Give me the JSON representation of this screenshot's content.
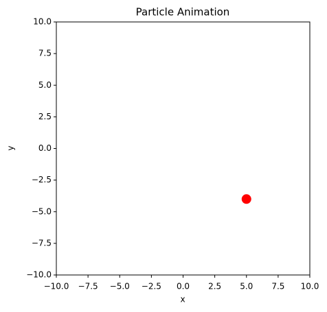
{
  "chart_data": {
    "type": "scatter",
    "title": "Particle Animation",
    "x_label": "x",
    "y_label": "y",
    "x": [
      5
    ],
    "values": [
      -4
    ],
    "color": "#ff0000",
    "xlim": [
      -10,
      10
    ],
    "ylim": [
      -10,
      10
    ],
    "xticks": [
      {
        "value": -10,
        "label": "−10.0"
      },
      {
        "value": -7.5,
        "label": "−7.5"
      },
      {
        "value": -5,
        "label": "−5.0"
      },
      {
        "value": -2.5,
        "label": "−2.5"
      },
      {
        "value": 0,
        "label": "0.0"
      },
      2.5,
      {
        "value": 5,
        "label": "5.0"
      },
      7.5,
      {
        "value": 10,
        "label": "10.0"
      }
    ],
    "yticks": [
      {
        "value": -10,
        "label": "−10.0"
      },
      {
        "value": -7.5,
        "label": "−7.5"
      },
      {
        "value": -5,
        "label": "−5.0"
      },
      {
        "value": -2.5,
        "label": "−2.5"
      },
      {
        "value": 0,
        "label": "0.0"
      },
      2.5,
      {
        "value": 5,
        "label": "5.0"
      },
      7.5,
      {
        "value": 10,
        "label": "10.0"
      }
    ],
    "grid": false
  }
}
